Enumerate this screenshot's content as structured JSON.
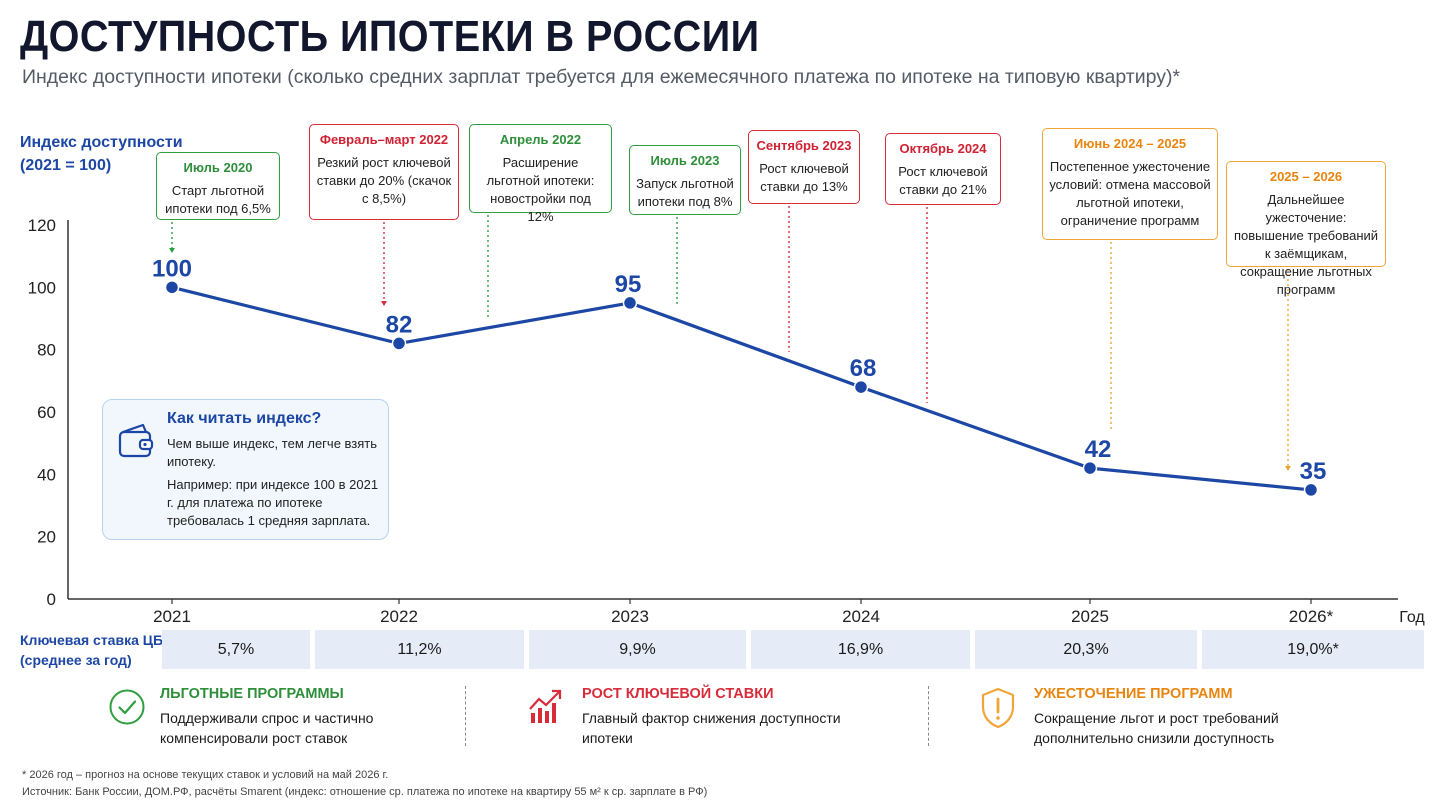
{
  "title": "ДОСТУПНОСТЬ ИПОТЕКИ В РОССИИ",
  "subtitle": "Индекс доступности ипотеки (сколько средних зарплат требуется для ежемесячного платежа по ипотеке на типовую квартиру)*",
  "y_title_line1": "Индекс доступности",
  "y_title_line2": "(2021 = 100)",
  "chart_data": {
    "type": "line",
    "title": "ДОСТУПНОСТЬ ИПОТЕКИ В РОССИИ",
    "ylabel": "Индекс доступности (2021 = 100)",
    "xlabel": "Год",
    "x": [
      "2021",
      "2022",
      "2023",
      "2024",
      "2025",
      "2026*"
    ],
    "series": [
      {
        "values": [
          100,
          82,
          95,
          68,
          42,
          35
        ]
      }
    ],
    "yticks": [
      0,
      20,
      40,
      60,
      80,
      100,
      120
    ],
    "ylim": [
      0,
      120
    ],
    "grid": false,
    "line_color": "#1d47a5"
  },
  "events": [
    {
      "date": "Июль 2020",
      "text": "Старт льготной ипотеки под 6,5%",
      "color": "green",
      "x_value": 2020.5
    },
    {
      "date": "Февраль–март 2022",
      "text": "Резкий рост ключевой ставки до 20% (скачок с 8,5%)",
      "color": "red",
      "x_value": 2022.17
    },
    {
      "date": "Апрель 2022",
      "text": "Расширение льготной ипотеки: новостройки под 12%",
      "color": "green",
      "x_value": 2022.33
    },
    {
      "date": "Июль 2023",
      "text": "Запуск льготной ипотеки под 8%",
      "color": "green",
      "x_value": 2023.5
    },
    {
      "date": "Сентябрь 2023",
      "text": "Рост ключевой ставки до 13%",
      "color": "red",
      "x_value": 2023.67
    },
    {
      "date": "Октябрь 2024",
      "text": "Рост ключевой ставки до 21%",
      "color": "red",
      "x_value": 2024.83
    },
    {
      "date": "Июнь 2024 – 2025",
      "text": "Постепенное ужесточение условий: отмена массовой льготной ипотеки, ограничение программ",
      "color": "orange",
      "x_value": 2025.5
    },
    {
      "date": "2025 – 2026",
      "text": "Дальнейшее ужесточение: повышение требований к заёмщикам, сокращение льготных программ",
      "color": "orange",
      "x_value": 2026.5
    }
  ],
  "info": {
    "title": "Как читать индекс?",
    "p1": "Чем выше индекс, тем легче взять ипотеку.",
    "p2": "Например: при индексе 100 в 2021 г. для платежа по ипотеке требовалась 1 средняя зарплата.",
    "icon": "wallet-icon"
  },
  "rates": {
    "label_line1": "Ключевая ставка ЦБ",
    "label_line2": "(среднее за год)",
    "values": [
      "5,7%",
      "11,2%",
      "9,9%",
      "16,9%",
      "20,3%",
      "19,0%*"
    ]
  },
  "legend": [
    {
      "title": "ЛЬГОТНЫЕ ПРОГРАММЫ",
      "text": "Поддерживали спрос и частично компенсировали рост ставок",
      "color": "#2e8f3a",
      "icon": "check-circle-icon"
    },
    {
      "title": "РОСТ КЛЮЧЕВОЙ СТАВКИ",
      "text": "Главный фактор снижения доступности ипотеки",
      "color": "#d82c3b",
      "icon": "rising-bars-icon"
    },
    {
      "title": "УЖЕСТОЧЕНИЕ ПРОГРАММ",
      "text": "Сокращение льгот и рост требований дополнительно снизили доступность",
      "color": "#e8850f",
      "icon": "shield-warning-icon"
    }
  ],
  "footnote1": "* 2026 год – прогноз на основе текущих ставок и условий на май 2026 г.",
  "footnote2": "Источник: Банк России, ДОМ.РФ, расчёты Smarent (индекс: отношение ср. платежа по ипотеке на квартиру 55 м² к ср. зарплате в РФ)"
}
